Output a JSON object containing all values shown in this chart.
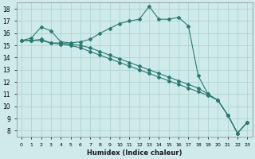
{
  "xlabel": "Humidex (Indice chaleur)",
  "ylabel": "",
  "bg_color": "#ceeaea",
  "line_color": "#2a7a72",
  "grid_color": "#aacece",
  "xlim": [
    -0.5,
    23.5
  ],
  "ylim": [
    7.5,
    18.5
  ],
  "xtick_labels": [
    "0",
    "1",
    "2",
    "3",
    "4",
    "5",
    "6",
    "7",
    "8",
    "9",
    "10",
    "11",
    "12",
    "13",
    "14",
    "15",
    "16",
    "17",
    "18",
    "19",
    "20",
    "21",
    "22",
    "23"
  ],
  "ytick_labels": [
    "8",
    "9",
    "10",
    "11",
    "12",
    "13",
    "14",
    "15",
    "16",
    "17",
    "18"
  ],
  "ytick_vals": [
    8,
    9,
    10,
    11,
    12,
    13,
    14,
    15,
    16,
    17,
    18
  ],
  "series1": [
    15.4,
    15.6,
    16.5,
    16.2,
    15.3,
    15.2,
    15.3,
    15.5,
    16.0,
    16.4,
    16.8,
    17.0,
    17.15,
    18.2,
    17.15,
    17.15,
    17.3,
    16.6,
    12.5,
    11.0,
    10.5,
    9.3,
    7.8,
    8.7
  ],
  "series2": [
    15.4,
    15.4,
    15.5,
    15.2,
    15.2,
    15.1,
    15.0,
    14.8,
    14.5,
    14.2,
    13.9,
    13.6,
    13.3,
    13.0,
    12.7,
    12.4,
    12.1,
    11.8,
    11.5,
    11.0,
    10.5,
    9.3,
    7.8,
    8.7
  ],
  "series3": [
    15.4,
    15.4,
    15.4,
    15.2,
    15.1,
    15.0,
    14.8,
    14.5,
    14.2,
    13.9,
    13.6,
    13.3,
    13.0,
    12.7,
    12.4,
    12.1,
    11.8,
    11.5,
    11.2,
    10.9,
    10.5,
    9.3,
    7.8,
    8.7
  ]
}
